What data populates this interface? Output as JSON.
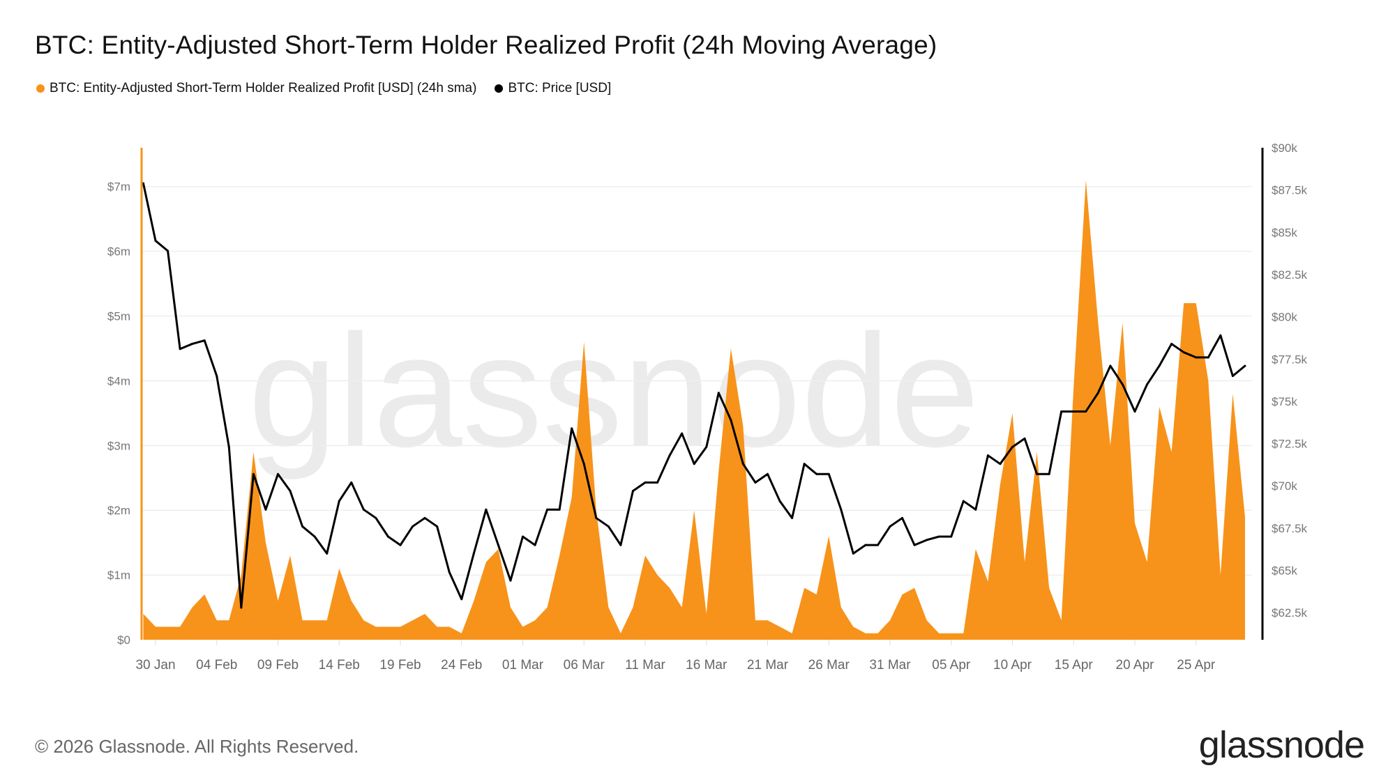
{
  "colors": {
    "profit": "#f7931a",
    "price": "#000000"
  },
  "watermark": "glassnode",
  "footer": {
    "copyright": "© 2026 Glassnode. All Rights Reserved.",
    "logo": "glassnode"
  },
  "chart_data": {
    "type": "area+line",
    "title": "BTC: Entity-Adjusted Short-Term Holder Realized Profit (24h Moving Average)",
    "legend_position": "top-left",
    "grid": true,
    "series": [
      {
        "name": "BTC: Entity-Adjusted Short-Term Holder Realized Profit [USD] (24h sma)",
        "type": "area",
        "axis": "left",
        "color": "#f7931a"
      },
      {
        "name": "BTC: Price [USD]",
        "type": "line",
        "axis": "right",
        "color": "#000000"
      }
    ],
    "x_tick_labels": [
      "30 Jan",
      "04 Feb",
      "09 Feb",
      "14 Feb",
      "19 Feb",
      "24 Feb",
      "01 Mar",
      "06 Mar",
      "11 Mar",
      "16 Mar",
      "21 Mar",
      "26 Mar",
      "31 Mar",
      "05 Apr",
      "10 Apr",
      "15 Apr",
      "20 Apr",
      "25 Apr"
    ],
    "left_axis": {
      "ylim": [
        0,
        7600000
      ],
      "tick_labels": [
        "$0",
        "$1m",
        "$2m",
        "$3m",
        "$4m",
        "$5m",
        "$6m",
        "$7m"
      ],
      "ticks": [
        0,
        1000000,
        2000000,
        3000000,
        4000000,
        5000000,
        6000000,
        7000000
      ]
    },
    "right_axis": {
      "ylim": [
        60900,
        90000
      ],
      "tick_labels": [
        "$62.5k",
        "$65k",
        "$67.5k",
        "$70k",
        "$72.5k",
        "$75k",
        "$77.5k",
        "$80k",
        "$82.5k",
        "$85k",
        "$87.5k",
        "$90k"
      ],
      "ticks": [
        62500,
        65000,
        67500,
        70000,
        72500,
        75000,
        77500,
        80000,
        82500,
        85000,
        87500,
        90000
      ]
    },
    "dates": [
      "2026-01-29",
      "2026-01-30",
      "2026-01-31",
      "2026-02-01",
      "2026-02-02",
      "2026-02-03",
      "2026-02-04",
      "2026-02-05",
      "2026-02-06",
      "2026-02-07",
      "2026-02-08",
      "2026-02-09",
      "2026-02-10",
      "2026-02-11",
      "2026-02-12",
      "2026-02-13",
      "2026-02-14",
      "2026-02-15",
      "2026-02-16",
      "2026-02-17",
      "2026-02-18",
      "2026-02-19",
      "2026-02-20",
      "2026-02-21",
      "2026-02-22",
      "2026-02-23",
      "2026-02-24",
      "2026-02-25",
      "2026-02-26",
      "2026-02-27",
      "2026-02-28",
      "2026-03-01",
      "2026-03-02",
      "2026-03-03",
      "2026-03-04",
      "2026-03-05",
      "2026-03-06",
      "2026-03-07",
      "2026-03-08",
      "2026-03-09",
      "2026-03-10",
      "2026-03-11",
      "2026-03-12",
      "2026-03-13",
      "2026-03-14",
      "2026-03-15",
      "2026-03-16",
      "2026-03-17",
      "2026-03-18",
      "2026-03-19",
      "2026-03-20",
      "2026-03-21",
      "2026-03-22",
      "2026-03-23",
      "2026-03-24",
      "2026-03-25",
      "2026-03-26",
      "2026-03-27",
      "2026-03-28",
      "2026-03-29",
      "2026-03-30",
      "2026-03-31",
      "2026-04-01",
      "2026-04-02",
      "2026-04-03",
      "2026-04-04",
      "2026-04-05",
      "2026-04-06",
      "2026-04-07",
      "2026-04-08",
      "2026-04-09",
      "2026-04-10",
      "2026-04-11",
      "2026-04-12",
      "2026-04-13",
      "2026-04-14",
      "2026-04-15",
      "2026-04-16",
      "2026-04-17",
      "2026-04-18",
      "2026-04-19",
      "2026-04-20",
      "2026-04-21",
      "2026-04-22",
      "2026-04-23",
      "2026-04-24",
      "2026-04-25",
      "2026-04-26",
      "2026-04-27",
      "2026-04-28",
      "2026-04-29"
    ],
    "profit_usd_m": [
      0.4,
      0.2,
      0.2,
      0.2,
      0.5,
      0.7,
      0.3,
      0.3,
      1.0,
      2.9,
      1.5,
      0.6,
      1.3,
      0.3,
      0.3,
      0.3,
      1.1,
      0.6,
      0.3,
      0.2,
      0.2,
      0.2,
      0.3,
      0.4,
      0.2,
      0.2,
      0.1,
      0.6,
      1.2,
      1.4,
      0.5,
      0.2,
      0.3,
      0.5,
      1.3,
      2.2,
      4.6,
      2.0,
      0.5,
      0.1,
      0.5,
      1.3,
      1.0,
      0.8,
      0.5,
      2.0,
      0.4,
      2.6,
      4.5,
      3.3,
      0.3,
      0.3,
      0.2,
      0.1,
      0.8,
      0.7,
      1.6,
      0.5,
      0.2,
      0.1,
      0.1,
      0.3,
      0.7,
      0.8,
      0.3,
      0.1,
      0.1,
      0.1,
      1.4,
      0.9,
      2.4,
      3.5,
      1.2,
      2.9,
      0.8,
      0.3,
      3.9,
      7.1,
      4.9,
      3.0,
      4.9,
      1.8,
      1.2,
      3.6,
      2.9,
      5.2,
      5.2,
      4.0,
      1.0,
      3.8,
      1.9
    ],
    "price_usd_k": [
      87.9,
      84.5,
      83.9,
      78.1,
      78.4,
      78.6,
      76.5,
      72.3,
      62.8,
      70.7,
      68.6,
      70.7,
      69.7,
      67.6,
      67.0,
      66.0,
      69.1,
      70.2,
      68.6,
      68.1,
      67.0,
      66.5,
      67.6,
      68.1,
      67.6,
      64.9,
      63.3,
      66.0,
      68.6,
      66.5,
      64.4,
      67.0,
      66.5,
      68.6,
      68.6,
      73.4,
      71.3,
      68.1,
      67.6,
      66.5,
      69.7,
      70.2,
      70.2,
      71.8,
      73.1,
      71.3,
      72.3,
      75.5,
      73.9,
      71.3,
      70.2,
      70.7,
      69.1,
      68.1,
      71.3,
      70.7,
      70.7,
      68.6,
      66.0,
      66.5,
      66.5,
      67.6,
      68.1,
      66.5,
      66.8,
      67.0,
      67.0,
      69.1,
      68.6,
      71.8,
      71.3,
      72.3,
      72.8,
      70.7,
      70.7,
      74.4,
      74.4,
      74.4,
      75.5,
      77.1,
      76.0,
      74.4,
      76.0,
      77.1,
      78.4,
      77.9,
      77.6,
      77.6,
      78.9,
      76.5,
      77.1
    ]
  }
}
